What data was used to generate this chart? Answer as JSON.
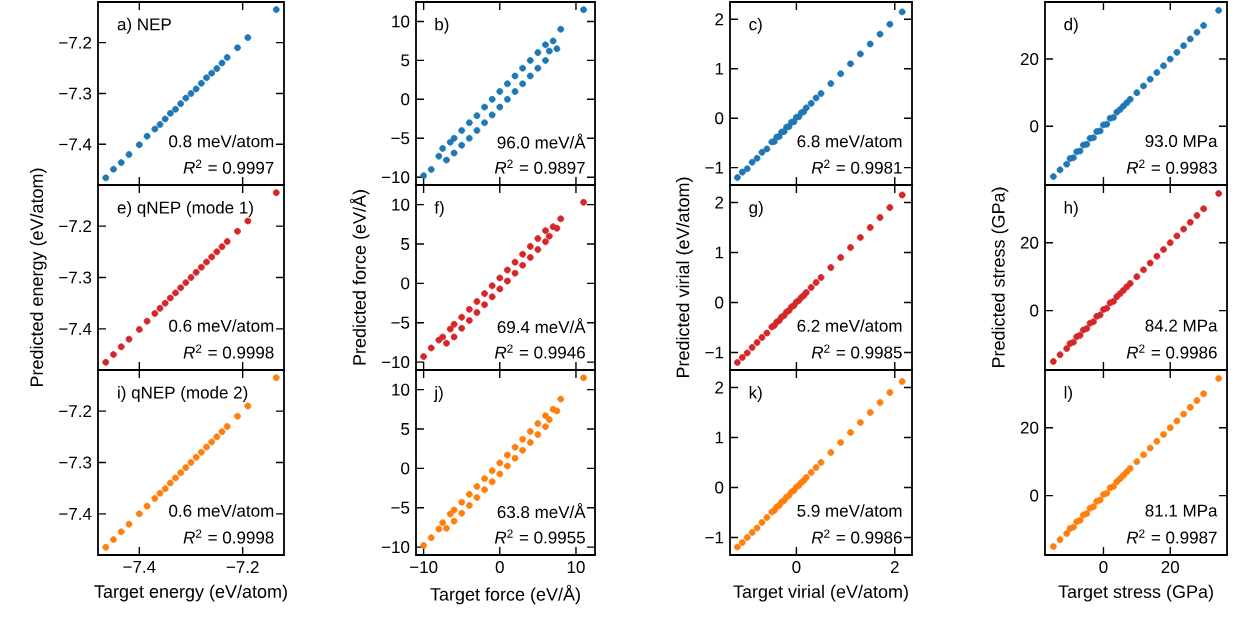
{
  "chart_data": [
    {
      "type": "scatter",
      "color": "#1f77b4",
      "tick_labels": "y",
      "annotations": [
        "a) NEP",
        "0.8 meV/atom",
        "*R*$^{2}$ = 0.9997"
      ],
      "xlim": [
        -7.48,
        -7.12
      ],
      "ylim": [
        -7.48,
        -7.12
      ],
      "xticks": [
        -7.4,
        -7.2
      ],
      "yticks": [
        {
          "value": -7.4,
          "label": "−7.4"
        },
        {
          "value": -7.3,
          "label": "−7.3"
        },
        {
          "value": -7.2,
          "label": "−7.2"
        }
      ],
      "x": [
        -7.465,
        -7.45,
        -7.435,
        -7.42,
        -7.4,
        -7.385,
        -7.37,
        -7.36,
        -7.35,
        -7.34,
        -7.33,
        -7.32,
        -7.31,
        -7.3,
        -7.29,
        -7.28,
        -7.27,
        -7.26,
        -7.25,
        -7.24,
        -7.23,
        -7.21,
        -7.19,
        -7.135
      ],
      "values": [
        -7.466,
        -7.449,
        -7.436,
        -7.42,
        -7.401,
        -7.384,
        -7.37,
        -7.361,
        -7.35,
        -7.339,
        -7.331,
        -7.32,
        -7.309,
        -7.3,
        -7.291,
        -7.28,
        -7.269,
        -7.26,
        -7.251,
        -7.24,
        -7.229,
        -7.21,
        -7.19,
        -7.135
      ]
    },
    {
      "type": "scatter",
      "color": "#1f77b4",
      "tick_labels": "y",
      "annotations": [
        "b)",
        "96.0 meV/Å",
        "*R*$^{2}$ = 0.9897"
      ],
      "xlim": [
        -11,
        12.5
      ],
      "ylim": [
        -11,
        12.5
      ],
      "xticks": [
        -10,
        0,
        10
      ],
      "yticks": [
        {
          "value": -10,
          "label": "−10"
        },
        {
          "value": -5,
          "label": "−5"
        },
        0,
        5,
        10
      ],
      "x": [
        -10,
        -9,
        -8,
        -7.5,
        -7,
        -6.5,
        -6,
        -6,
        -5,
        -5,
        -4,
        -4,
        -3,
        -3,
        -2,
        -2,
        -1,
        -1,
        0,
        0,
        1,
        1,
        2,
        2,
        3,
        3,
        4,
        4,
        5,
        5,
        6,
        6,
        6.5,
        7,
        7.5,
        8,
        11
      ],
      "values": [
        -9.8,
        -9,
        -7.3,
        -6.3,
        -7.8,
        -5.5,
        -6.9,
        -5,
        -5.9,
        -4,
        -5,
        -3,
        -4,
        -2.1,
        -3,
        -1,
        -2,
        0,
        -1,
        1,
        0,
        2,
        1,
        3,
        2,
        4,
        3,
        5,
        4,
        6,
        5,
        7,
        6.2,
        7.5,
        6.5,
        9,
        11.5
      ]
    },
    {
      "type": "scatter",
      "color": "#1f77b4",
      "tick_labels": "y",
      "annotations": [
        "c)",
        "6.8 meV/atom",
        "*R*$^{2}$ = 0.9981"
      ],
      "xlim": [
        -1.35,
        2.35
      ],
      "ylim": [
        -1.35,
        2.35
      ],
      "xticks": [
        0,
        2
      ],
      "yticks": [
        {
          "value": -1,
          "label": "−1"
        },
        0,
        1,
        2
      ],
      "x": [
        -1.2,
        -1.1,
        -1.0,
        -0.9,
        -0.8,
        -0.7,
        -0.6,
        -0.5,
        -0.45,
        -0.4,
        -0.35,
        -0.3,
        -0.25,
        -0.2,
        -0.15,
        -0.1,
        -0.05,
        0,
        0.05,
        0.1,
        0.15,
        0.2,
        0.3,
        0.4,
        0.5,
        0.7,
        0.9,
        1.1,
        1.3,
        1.5,
        1.7,
        1.9,
        2.15
      ],
      "values": [
        -1.2,
        -1.09,
        -1.02,
        -0.89,
        -0.81,
        -0.69,
        -0.62,
        -0.48,
        -0.47,
        -0.38,
        -0.37,
        -0.28,
        -0.27,
        -0.18,
        -0.17,
        -0.08,
        -0.07,
        0.02,
        0.03,
        0.11,
        0.13,
        0.21,
        0.3,
        0.41,
        0.5,
        0.7,
        0.9,
        1.1,
        1.3,
        1.5,
        1.7,
        1.9,
        2.15
      ]
    },
    {
      "type": "scatter",
      "color": "#1f77b4",
      "tick_labels": "y",
      "annotations": [
        "d)",
        "93.0 MPa",
        "*R*$^{2}$ = 0.9983"
      ],
      "xlim": [
        -17.5,
        37
      ],
      "ylim": [
        -17.5,
        37
      ],
      "xticks": [
        0,
        20
      ],
      "yticks": [
        0,
        20
      ],
      "x": [
        -15,
        -13,
        -11,
        -10,
        -9,
        -8,
        -7,
        -6,
        -5,
        -4,
        -3,
        -2,
        -1,
        0,
        1,
        2,
        3,
        4,
        5,
        6,
        7,
        8,
        10,
        12,
        14,
        16,
        18,
        20,
        22,
        24,
        26,
        28,
        30,
        34.5
      ],
      "values": [
        -15,
        -13,
        -11.3,
        -9.6,
        -9.4,
        -7.6,
        -7.4,
        -5.6,
        -5.4,
        -3.6,
        -3.4,
        -1.6,
        -1.4,
        0.4,
        0.6,
        2.4,
        2.6,
        4.2,
        5,
        6,
        7,
        8,
        10,
        12,
        14,
        16,
        18,
        20,
        22,
        24,
        26,
        28,
        30,
        34.5
      ]
    },
    {
      "type": "scatter",
      "color": "#d62728",
      "tick_labels": "y",
      "ylabel": "Predicted energy (eV/atom)",
      "annotations": [
        "e) qNEP (mode 1)",
        "0.6 meV/atom",
        "*R*$^{2}$ = 0.9998"
      ],
      "xlim": [
        -7.48,
        -7.12
      ],
      "ylim": [
        -7.48,
        -7.12
      ],
      "xticks": [
        -7.4,
        -7.2
      ],
      "yticks": [
        {
          "value": -7.4,
          "label": "−7.4"
        },
        {
          "value": -7.3,
          "label": "−7.3"
        },
        {
          "value": -7.2,
          "label": "−7.2"
        }
      ],
      "x": [
        -7.465,
        -7.45,
        -7.435,
        -7.42,
        -7.4,
        -7.385,
        -7.37,
        -7.36,
        -7.35,
        -7.34,
        -7.33,
        -7.32,
        -7.31,
        -7.3,
        -7.29,
        -7.28,
        -7.27,
        -7.26,
        -7.25,
        -7.24,
        -7.23,
        -7.21,
        -7.19,
        -7.135
      ],
      "values": [
        -7.465,
        -7.45,
        -7.435,
        -7.42,
        -7.401,
        -7.385,
        -7.37,
        -7.36,
        -7.35,
        -7.34,
        -7.33,
        -7.32,
        -7.31,
        -7.3,
        -7.29,
        -7.28,
        -7.27,
        -7.26,
        -7.25,
        -7.24,
        -7.23,
        -7.21,
        -7.19,
        -7.135
      ]
    },
    {
      "type": "scatter",
      "color": "#d62728",
      "tick_labels": "y",
      "ylabel": "Predicted force (eV/Å)",
      "annotations": [
        "f)",
        "69.4 meV/Å",
        "*R*$^{2}$ = 0.9946"
      ],
      "xlim": [
        -11,
        12.5
      ],
      "ylim": [
        -11,
        12.5
      ],
      "xticks": [
        -10,
        0,
        10
      ],
      "yticks": [
        {
          "value": -10,
          "label": "−10"
        },
        {
          "value": -5,
          "label": "−5"
        },
        0,
        5,
        10
      ],
      "x": [
        -10,
        -9,
        -8,
        -7.5,
        -7,
        -6.5,
        -6,
        -6,
        -5,
        -5,
        -4,
        -4,
        -3,
        -3,
        -2,
        -2,
        -1,
        -1,
        0,
        0,
        1,
        1,
        2,
        2,
        3,
        3,
        4,
        4,
        5,
        5,
        6,
        6,
        6.5,
        7,
        7.5,
        8,
        11
      ],
      "values": [
        -9.3,
        -8.2,
        -7.2,
        -6.8,
        -7.6,
        -5.8,
        -6.8,
        -5.2,
        -5.7,
        -4.3,
        -4.7,
        -3.3,
        -3.7,
        -2.3,
        -2.7,
        -1.3,
        -1.7,
        -0.3,
        -0.7,
        0.7,
        0.3,
        1.7,
        1.3,
        2.7,
        2.3,
        3.7,
        3.3,
        4.7,
        4.3,
        5.7,
        5.3,
        6.7,
        6,
        7.2,
        7,
        8.2,
        10.3
      ]
    },
    {
      "type": "scatter",
      "color": "#d62728",
      "tick_labels": "y",
      "ylabel": "Predicted virial (eV/atom)",
      "annotations": [
        "g)",
        "6.2 meV/atom",
        "*R*$^{2}$ = 0.9985"
      ],
      "xlim": [
        -1.35,
        2.35
      ],
      "ylim": [
        -1.35,
        2.35
      ],
      "xticks": [
        0,
        2
      ],
      "yticks": [
        {
          "value": -1,
          "label": "−1"
        },
        0,
        1,
        2
      ],
      "x": [
        -1.2,
        -1.1,
        -1.0,
        -0.9,
        -0.8,
        -0.7,
        -0.6,
        -0.5,
        -0.45,
        -0.4,
        -0.35,
        -0.3,
        -0.25,
        -0.2,
        -0.15,
        -0.1,
        -0.05,
        0,
        0.05,
        0.1,
        0.15,
        0.2,
        0.3,
        0.4,
        0.5,
        0.7,
        0.9,
        1.1,
        1.3,
        1.5,
        1.7,
        1.9,
        2.15
      ],
      "values": [
        -1.2,
        -1.1,
        -1.01,
        -0.9,
        -0.8,
        -0.7,
        -0.61,
        -0.49,
        -0.46,
        -0.39,
        -0.36,
        -0.29,
        -0.26,
        -0.19,
        -0.16,
        -0.09,
        -0.06,
        0.01,
        0.04,
        0.1,
        0.14,
        0.2,
        0.3,
        0.4,
        0.5,
        0.7,
        0.9,
        1.1,
        1.3,
        1.5,
        1.7,
        1.9,
        2.15
      ]
    },
    {
      "type": "scatter",
      "color": "#d62728",
      "tick_labels": "y",
      "ylabel": "Predicted stress (GPa)",
      "annotations": [
        "h)",
        "84.2 MPa",
        "*R*$^{2}$ = 0.9986"
      ],
      "xlim": [
        -17.5,
        37
      ],
      "ylim": [
        -17.5,
        37
      ],
      "xticks": [
        0,
        20
      ],
      "yticks": [
        0,
        20
      ],
      "x": [
        -15,
        -13,
        -11,
        -10,
        -9,
        -8,
        -7,
        -6,
        -5,
        -4,
        -3,
        -2,
        -1,
        0,
        1,
        2,
        3,
        4,
        5,
        6,
        7,
        8,
        10,
        12,
        14,
        16,
        18,
        20,
        22,
        24,
        26,
        28,
        30,
        34.5
      ],
      "values": [
        -15,
        -13,
        -11.2,
        -9.7,
        -9.3,
        -7.7,
        -7.3,
        -5.7,
        -5.3,
        -3.7,
        -3.3,
        -1.7,
        -1.3,
        0.3,
        0.7,
        2.3,
        2.7,
        4.1,
        5,
        6,
        7,
        8,
        10,
        12,
        14,
        16,
        18,
        20,
        22,
        24,
        26,
        28,
        30,
        34.5
      ]
    },
    {
      "type": "scatter",
      "color": "#ff7f0e",
      "xlabel": "Target energy (eV/atom)",
      "annotations": [
        "i) qNEP (mode 2)",
        "0.6 meV/atom",
        "*R*$^{2}$ = 0.9998"
      ],
      "xlim": [
        -7.48,
        -7.12
      ],
      "ylim": [
        -7.48,
        -7.12
      ],
      "xticks": [
        {
          "value": -7.4,
          "label": "−7.4"
        },
        {
          "value": -7.2,
          "label": "−7.2"
        }
      ],
      "yticks": [
        {
          "value": -7.4,
          "label": "−7.4"
        },
        {
          "value": -7.3,
          "label": "−7.3"
        },
        {
          "value": -7.2,
          "label": "−7.2"
        }
      ],
      "x": [
        -7.465,
        -7.45,
        -7.435,
        -7.42,
        -7.4,
        -7.385,
        -7.37,
        -7.36,
        -7.35,
        -7.34,
        -7.33,
        -7.32,
        -7.31,
        -7.3,
        -7.29,
        -7.28,
        -7.27,
        -7.26,
        -7.25,
        -7.24,
        -7.23,
        -7.21,
        -7.19,
        -7.135
      ],
      "values": [
        -7.465,
        -7.45,
        -7.435,
        -7.42,
        -7.4,
        -7.385,
        -7.37,
        -7.36,
        -7.351,
        -7.34,
        -7.33,
        -7.32,
        -7.31,
        -7.3,
        -7.29,
        -7.28,
        -7.27,
        -7.26,
        -7.25,
        -7.24,
        -7.23,
        -7.21,
        -7.19,
        -7.135
      ]
    },
    {
      "type": "scatter",
      "color": "#ff7f0e",
      "xlabel": "Target force (eV/Å)",
      "annotations": [
        "j)",
        "63.8 meV/Å",
        "*R*$^{2}$ = 0.9955"
      ],
      "xlim": [
        -11,
        12.5
      ],
      "ylim": [
        -11,
        12.5
      ],
      "xticks": [
        {
          "value": -10,
          "label": "−10"
        },
        0,
        10
      ],
      "yticks": [
        {
          "value": -10,
          "label": "−10"
        },
        {
          "value": -5,
          "label": "−5"
        },
        0,
        5,
        10
      ],
      "x": [
        -10,
        -9,
        -8,
        -7.5,
        -7,
        -6.5,
        -6,
        -6,
        -5,
        -5,
        -4,
        -4,
        -3,
        -3,
        -2,
        -2,
        -1,
        -1,
        0,
        0,
        1,
        1,
        2,
        2,
        3,
        3,
        4,
        4,
        5,
        5,
        6,
        6,
        6.5,
        7,
        7.5,
        8,
        11
      ],
      "values": [
        -9.8,
        -8.8,
        -7.7,
        -6.9,
        -7.6,
        -5.8,
        -6.7,
        -5.3,
        -5.7,
        -4.3,
        -4.7,
        -3.3,
        -3.7,
        -2.3,
        -2.7,
        -1.3,
        -1.7,
        -0.3,
        -0.7,
        0.7,
        0.3,
        1.7,
        1.3,
        2.7,
        2.3,
        3.7,
        3.3,
        4.7,
        4.3,
        5.7,
        5.3,
        6.7,
        6.2,
        7.5,
        7.3,
        8.8,
        11.5
      ]
    },
    {
      "type": "scatter",
      "color": "#ff7f0e",
      "xlabel": "Target virial (eV/atom)",
      "annotations": [
        "k)",
        "5.9 meV/atom",
        "*R*$^{2}$ = 0.9986"
      ],
      "xlim": [
        -1.35,
        2.35
      ],
      "ylim": [
        -1.35,
        2.35
      ],
      "xticks": [
        0,
        2
      ],
      "yticks": [
        {
          "value": -1,
          "label": "−1"
        },
        0,
        1,
        2
      ],
      "x": [
        -1.2,
        -1.1,
        -1.0,
        -0.9,
        -0.8,
        -0.7,
        -0.6,
        -0.5,
        -0.45,
        -0.4,
        -0.35,
        -0.3,
        -0.25,
        -0.2,
        -0.15,
        -0.1,
        -0.05,
        0,
        0.05,
        0.1,
        0.15,
        0.2,
        0.3,
        0.4,
        0.5,
        0.7,
        0.9,
        1.1,
        1.3,
        1.5,
        1.7,
        1.9,
        2.15
      ],
      "values": [
        -1.19,
        -1.1,
        -1.0,
        -0.9,
        -0.81,
        -0.7,
        -0.6,
        -0.49,
        -0.46,
        -0.39,
        -0.36,
        -0.29,
        -0.26,
        -0.19,
        -0.16,
        -0.09,
        -0.06,
        0.01,
        0.04,
        0.1,
        0.14,
        0.2,
        0.3,
        0.4,
        0.5,
        0.7,
        0.9,
        1.1,
        1.3,
        1.5,
        1.7,
        1.9,
        2.12
      ]
    },
    {
      "type": "scatter",
      "color": "#ff7f0e",
      "xlabel": "Target stress (GPa)",
      "annotations": [
        "l)",
        "81.1 MPa",
        "*R*$^{2}$ = 0.9987"
      ],
      "xlim": [
        -17.5,
        37
      ],
      "ylim": [
        -17.5,
        37
      ],
      "xticks": [
        0,
        20
      ],
      "yticks": [
        0,
        20
      ],
      "x": [
        -15,
        -13,
        -11,
        -10,
        -9,
        -8,
        -7,
        -6,
        -5,
        -4,
        -3,
        -2,
        -1,
        0,
        1,
        2,
        3,
        4,
        5,
        6,
        7,
        8,
        10,
        12,
        14,
        16,
        18,
        20,
        22,
        24,
        26,
        28,
        30,
        34.5
      ],
      "values": [
        -15,
        -13,
        -11.2,
        -9.7,
        -9.3,
        -7.7,
        -7.3,
        -5.7,
        -5.3,
        -3.7,
        -3.3,
        -1.7,
        -1.3,
        0.3,
        0.7,
        2.3,
        2.7,
        4.1,
        5,
        6,
        7,
        8,
        10,
        12,
        14,
        16,
        18,
        20,
        22,
        24,
        26,
        28,
        30,
        34.5
      ]
    }
  ]
}
